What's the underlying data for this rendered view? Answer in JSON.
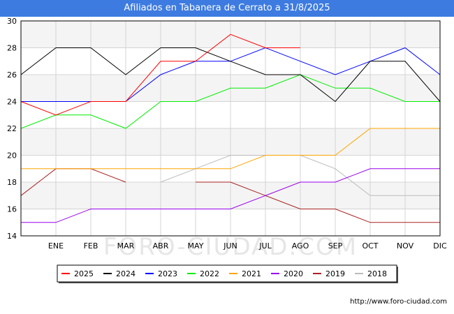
{
  "title": "Afiliados en Tabanera de Cerrato a 31/8/2025",
  "watermark": "FORO-CIUDAD.COM",
  "source_url": "http://www.foro-ciudad.com",
  "chart_data": {
    "type": "line",
    "categories": [
      "",
      "ENE",
      "FEB",
      "MAR",
      "ABR",
      "MAY",
      "JUN",
      "JUL",
      "AGO",
      "SEP",
      "OCT",
      "NOV",
      "DIC"
    ],
    "ylim": [
      14,
      30
    ],
    "yticks": [
      14,
      16,
      18,
      20,
      22,
      24,
      26,
      28,
      30
    ],
    "grid": true,
    "legend_position": "bottom",
    "series": [
      {
        "name": "2025",
        "color": "#ff0000",
        "values": [
          24,
          23,
          24,
          24,
          27,
          27,
          29,
          28,
          28,
          null,
          null,
          null,
          null
        ]
      },
      {
        "name": "2024",
        "color": "#000000",
        "values": [
          26,
          28,
          28,
          26,
          28,
          28,
          27,
          26,
          26,
          24,
          27,
          27,
          24
        ]
      },
      {
        "name": "2023",
        "color": "#0000ff",
        "values": [
          24,
          24,
          24,
          24,
          26,
          27,
          27,
          28,
          27,
          26,
          27,
          28,
          26
        ]
      },
      {
        "name": "2022",
        "color": "#00ee00",
        "values": [
          22,
          23,
          23,
          22,
          24,
          24,
          25,
          25,
          26,
          25,
          25,
          24,
          24
        ]
      },
      {
        "name": "2021",
        "color": "#ffa500",
        "values": [
          19,
          19,
          19,
          19,
          19,
          19,
          19,
          20,
          20,
          20,
          22,
          22,
          22
        ]
      },
      {
        "name": "2020",
        "color": "#9900ee",
        "values": [
          15,
          15,
          16,
          16,
          16,
          16,
          16,
          17,
          18,
          18,
          19,
          19,
          19
        ]
      },
      {
        "name": "2019",
        "color": "#aa2222",
        "values": [
          17,
          19,
          19,
          18,
          null,
          18,
          18,
          17,
          16,
          16,
          15,
          15,
          15
        ]
      },
      {
        "name": "2018",
        "color": "#bbbbbb",
        "values": [
          null,
          null,
          null,
          null,
          18,
          19,
          20,
          20,
          20,
          19,
          17,
          17,
          17
        ]
      }
    ]
  }
}
